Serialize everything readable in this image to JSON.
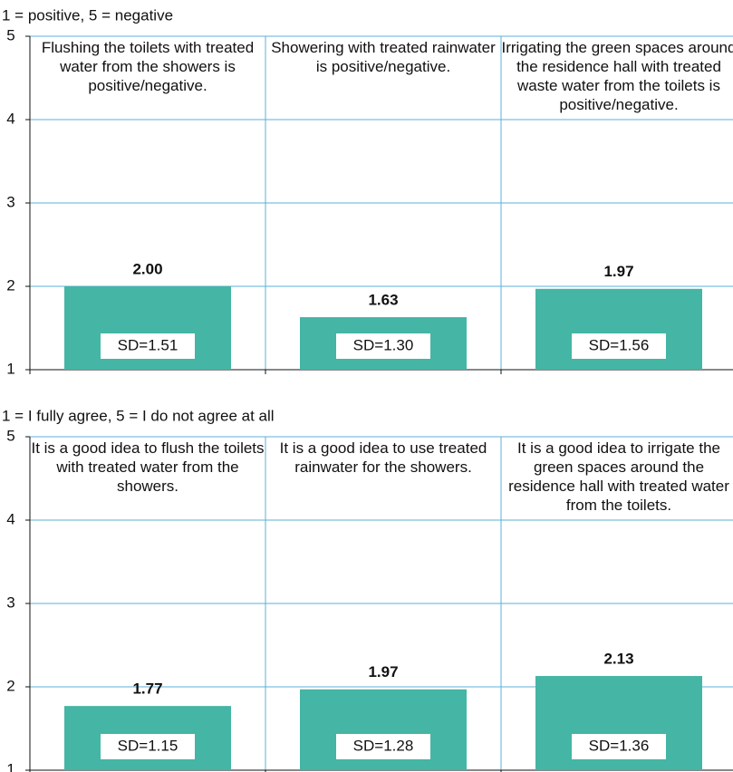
{
  "chart_data": [
    {
      "type": "bar",
      "subtitle": "1 = positive, 5 = negative",
      "categories": [
        "Flushing the toilets with treated water from the showers is positive/negative.",
        "Showering with treated rainwater is positive/negative.",
        "Irrigating the green spaces around the residence hall with treated waste water from the toilets is positive/negative."
      ],
      "values": [
        2.0,
        1.63,
        1.97
      ],
      "value_labels": [
        "2.00",
        "1.63",
        "1.97"
      ],
      "sd_labels": [
        "SD=1.51",
        "SD=1.30",
        "SD=1.56"
      ],
      "color": "#45b5a5",
      "ylim": [
        1,
        5
      ],
      "yticks": [
        1,
        2,
        3,
        4,
        5
      ],
      "grid": true
    },
    {
      "type": "bar",
      "subtitle": "1 = I fully agree, 5 = I do not agree at all",
      "categories": [
        "It is a good idea to flush the toilets with treated water from the showers.",
        "It is a good idea to use treated rainwater for the showers.",
        "It is a good idea to irrigate the green spaces around the residence hall with treated water from the toilets."
      ],
      "values": [
        1.77,
        1.97,
        2.13
      ],
      "value_labels": [
        "1.77",
        "1.97",
        "2.13"
      ],
      "sd_labels": [
        "SD=1.15",
        "SD=1.28",
        "SD=1.36"
      ],
      "color": "#45b5a5",
      "ylim": [
        1,
        5
      ],
      "yticks": [
        1,
        2,
        3,
        4,
        5
      ],
      "grid": true
    }
  ]
}
